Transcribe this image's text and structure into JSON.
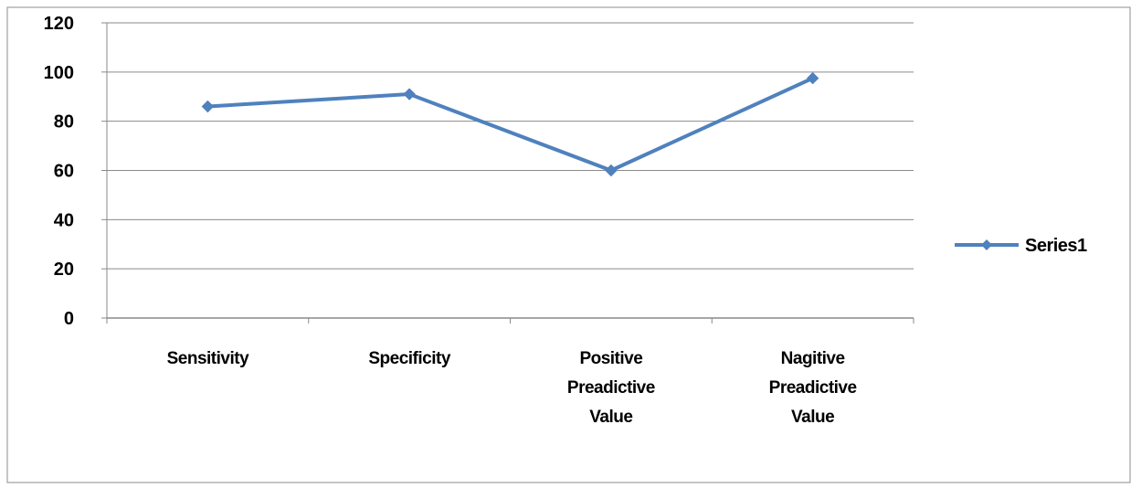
{
  "chart_data": {
    "type": "line",
    "title": "",
    "xlabel": "",
    "ylabel": "",
    "categories": [
      [
        "Sensitivity"
      ],
      [
        "Specificity"
      ],
      [
        "Positive",
        "Preadictive",
        "Value"
      ],
      [
        "Nagitive",
        "Preadictive",
        "Value"
      ]
    ],
    "series": [
      {
        "name": "Series1",
        "values": [
          86,
          91,
          60,
          97.5
        ],
        "color": "#4f81bd"
      }
    ],
    "ylim": [
      0,
      120
    ],
    "yticks": [
      0,
      20,
      40,
      60,
      80,
      100,
      120
    ],
    "grid": true,
    "legend": "right",
    "marker": "diamond"
  }
}
